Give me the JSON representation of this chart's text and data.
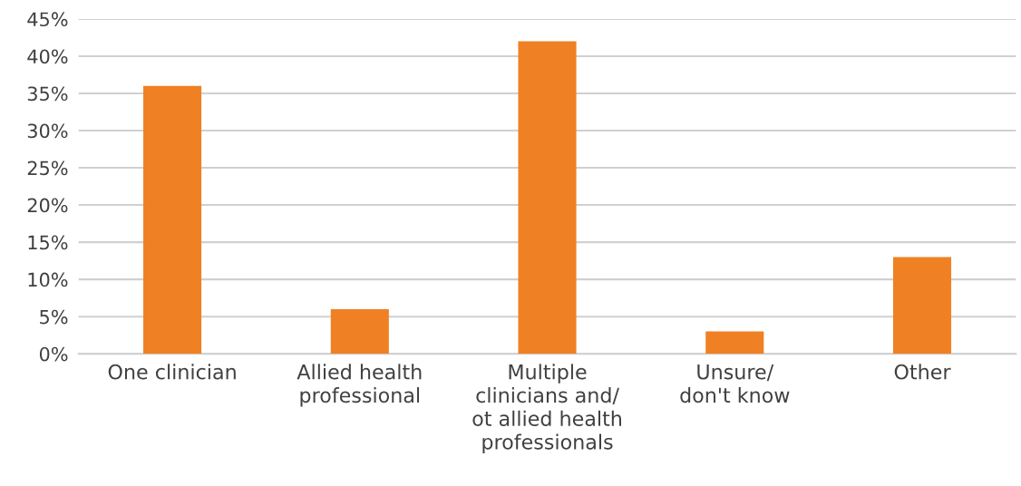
{
  "chart_data": {
    "type": "bar",
    "categories": [
      "One clinician",
      "Allied health\nprofessional",
      "Multiple\nclinicians and/\not allied health\nprofessionals",
      "Unsure/\ndon't know",
      "Other"
    ],
    "values": [
      36,
      6,
      42,
      3,
      13
    ],
    "color": "#f08024",
    "ylim": [
      0,
      45
    ],
    "yticks": [
      {
        "value": 0,
        "label": "0%"
      },
      {
        "value": 5,
        "label": "5%"
      },
      {
        "value": 10,
        "label": "10%"
      },
      {
        "value": 15,
        "label": "15%"
      },
      {
        "value": 20,
        "label": "20%"
      },
      {
        "value": 25,
        "label": "25%"
      },
      {
        "value": 30,
        "label": "30%"
      },
      {
        "value": 35,
        "label": "35%"
      },
      {
        "value": 40,
        "label": "40%"
      },
      {
        "value": 45,
        "label": "45%"
      }
    ],
    "grid": "y"
  }
}
